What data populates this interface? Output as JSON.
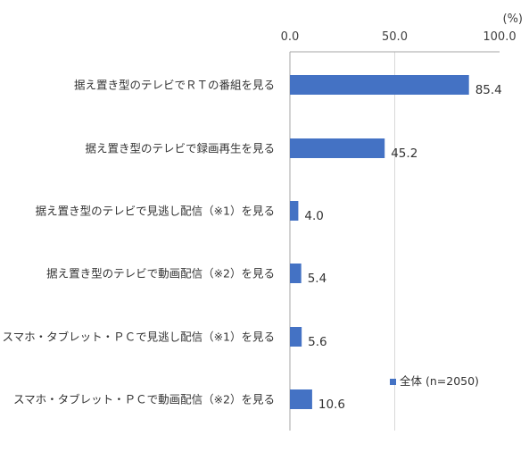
{
  "chart_data": {
    "type": "bar",
    "orientation": "horizontal",
    "unit": "(%)",
    "xlim": [
      0,
      100
    ],
    "ticks": [
      "0.0",
      "50.0",
      "100.0"
    ],
    "grid": "vertical line at 50.0",
    "categories": [
      "据え置き型のテレビでＲＴの番組を見る",
      "据え置き型のテレビで録画再生を見る",
      "据え置き型のテレビで見逃し配信（※1）を見る",
      "据え置き型のテレビで動画配信（※2）を見る",
      "スマホ・タブレット・ＰＣで見逃し配信（※1）を見る",
      "スマホ・タブレット・ＰＣで動画配信（※2）を見る"
    ],
    "series": [
      {
        "name": "全体 (n=2050)",
        "values": [
          85.4,
          45.2,
          4.0,
          5.4,
          5.6,
          10.6
        ],
        "labels": [
          "85.4",
          "45.2",
          "4.0",
          "5.4",
          "5.6",
          "10.6"
        ]
      }
    ],
    "legend_position": "bottom-right",
    "colors": {
      "bar": "#4472C4",
      "axis": "#A6A6A6",
      "grid": "#D9D9D9"
    }
  }
}
